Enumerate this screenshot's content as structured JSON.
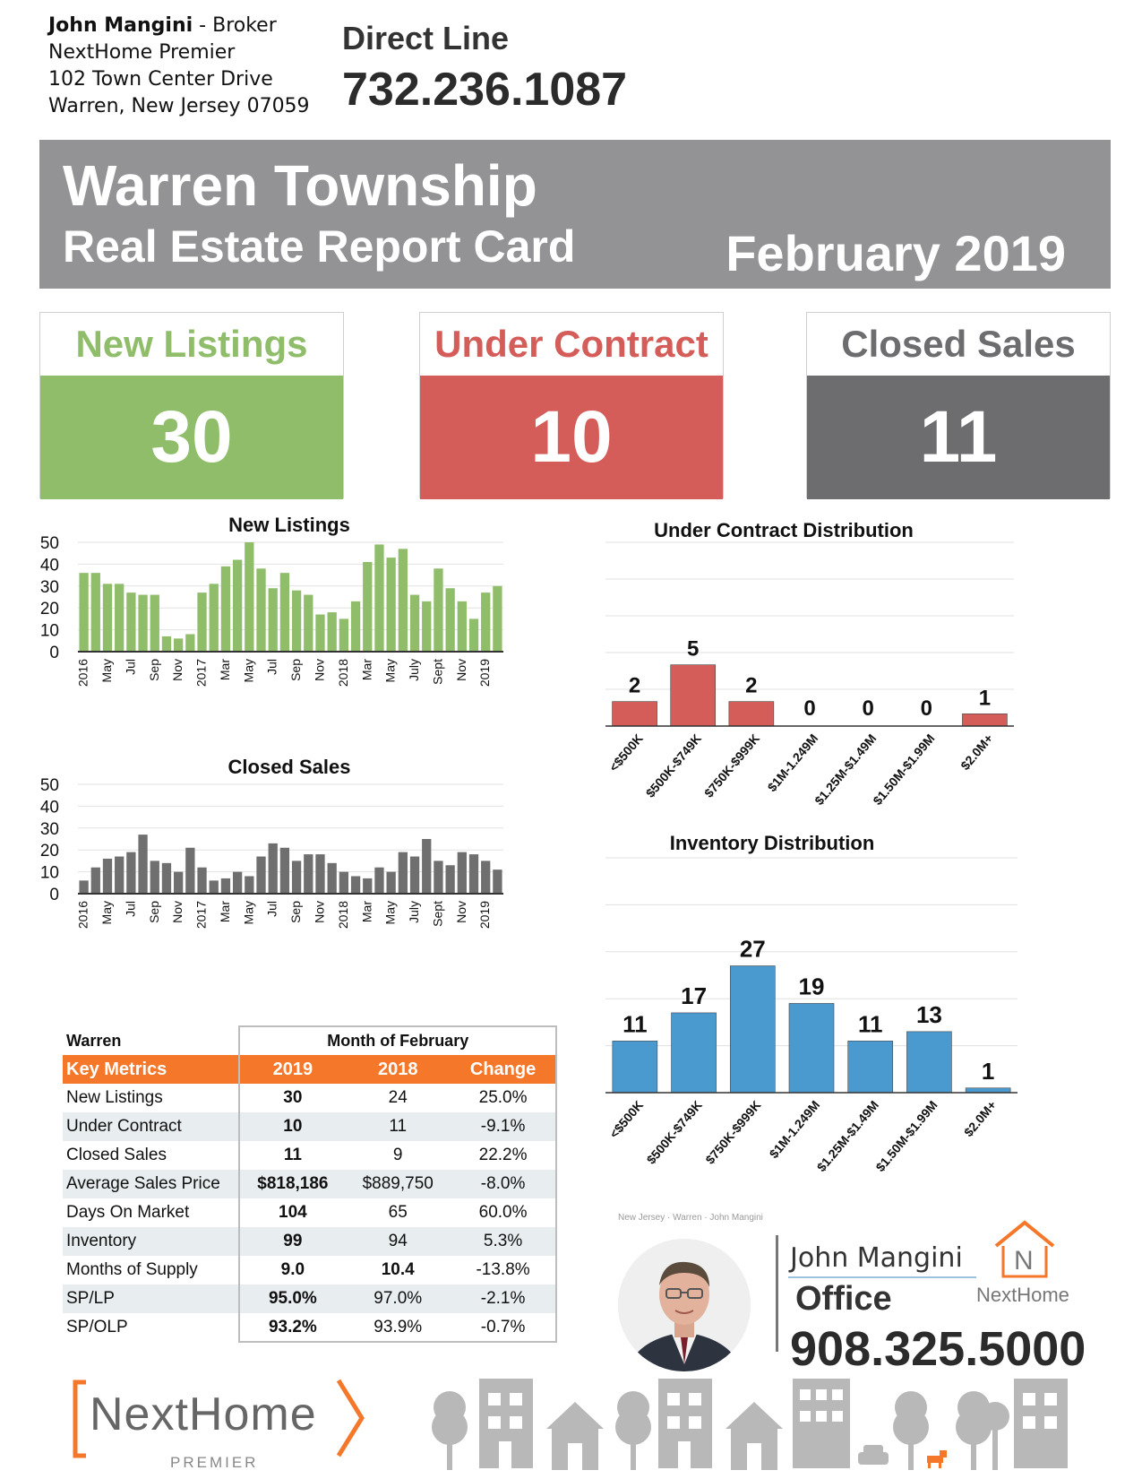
{
  "contact": {
    "name": "John Mangini",
    "role": " - Broker",
    "company": "NextHome Premier",
    "street": "102 Town Center Drive",
    "city": "Warren, New Jersey 07059"
  },
  "direct_line": {
    "label": "Direct Line",
    "phone": "732.236.1087"
  },
  "banner": {
    "title": "Warren Township",
    "subtitle": "Real Estate Report Card",
    "date": "February 2019"
  },
  "stats": {
    "new_listings": {
      "label": "New Listings",
      "value": "30"
    },
    "under_contract": {
      "label": "Under Contract",
      "value": "10"
    },
    "closed_sales": {
      "label": "Closed Sales",
      "value": "11"
    }
  },
  "colors": {
    "green": "#8fbd6a",
    "red": "#d45d5a",
    "gray_box": "#6d6d6f",
    "banner": "#939395",
    "blue": "#4a9ad0",
    "orange": "#f57729",
    "bar_gray": "#6f6f6f"
  },
  "chart_data": [
    {
      "id": "new_listings",
      "type": "bar",
      "title": "New Listings",
      "ylim": [
        0,
        50
      ],
      "yticks": [
        0,
        10,
        20,
        30,
        40,
        50
      ],
      "tick_labels": [
        "2016",
        "May",
        "Jul",
        "Sep",
        "Nov",
        "2017",
        "Mar",
        "May",
        "Jul",
        "Sep",
        "Nov",
        "2018",
        "Mar",
        "May",
        "July",
        "Sept",
        "Nov",
        "2019"
      ],
      "values": [
        36,
        36,
        31,
        31,
        27,
        26,
        26,
        7,
        6,
        8,
        27,
        31,
        39,
        42,
        50,
        38,
        29,
        36,
        28,
        26,
        17,
        18,
        15,
        23,
        41,
        49,
        43,
        47,
        26,
        23,
        38,
        29,
        23,
        15,
        27,
        30
      ],
      "color": "#8fbd6a"
    },
    {
      "id": "closed_sales",
      "type": "bar",
      "title": "Closed Sales",
      "ylim": [
        0,
        50
      ],
      "yticks": [
        0,
        10,
        20,
        30,
        40,
        50
      ],
      "tick_labels": [
        "2016",
        "May",
        "Jul",
        "Sep",
        "Nov",
        "2017",
        "Mar",
        "May",
        "Jul",
        "Sep",
        "Nov",
        "2018",
        "Mar",
        "May",
        "July",
        "Sept",
        "Nov",
        "2019"
      ],
      "values": [
        6,
        12,
        16,
        17,
        19,
        27,
        15,
        14,
        10,
        21,
        12,
        6,
        7,
        10,
        8,
        17,
        23,
        21,
        15,
        18,
        18,
        14,
        10,
        8,
        7,
        12,
        10,
        19,
        17,
        25,
        15,
        13,
        19,
        18,
        15,
        11
      ],
      "color": "#6f6f6f"
    },
    {
      "id": "under_contract_distribution",
      "type": "bar",
      "title": "Under Contract Distribution",
      "ylim": [
        0,
        15
      ],
      "yticks": [
        0,
        3,
        6,
        9,
        12,
        15
      ],
      "categories": [
        "<$500K",
        "$500K-$749K",
        "$750K-$999K",
        "$1M-1.249M",
        "$1.25M-$1.49M",
        "$1.50M-$1.99M",
        "$2.0M+"
      ],
      "values": [
        2,
        5,
        2,
        0,
        0,
        0,
        1
      ],
      "color": "#d45d5a"
    },
    {
      "id": "inventory_distribution",
      "type": "bar",
      "title": "Inventory Distribution",
      "ylim": [
        0,
        50
      ],
      "yticks": [
        0,
        10,
        20,
        30,
        40,
        50
      ],
      "categories": [
        "<$500K",
        "$500K-$749K",
        "$750K-$999K",
        "$1M-1.249M",
        "$1.25M-$1.49M",
        "$1.50M-$1.99M",
        "$2.0M+"
      ],
      "values": [
        11,
        17,
        27,
        19,
        11,
        13,
        1
      ],
      "color": "#4a9ad0"
    }
  ],
  "metrics": {
    "area": "Warren",
    "period": "Month of February",
    "key_label": "Key Metrics",
    "headers": [
      "2019",
      "2018",
      "Change"
    ],
    "rows": [
      {
        "name": "New Listings",
        "y2019": "30",
        "y2018": "24",
        "change": "25.0%"
      },
      {
        "name": "Under Contract",
        "y2019": "10",
        "y2018": "11",
        "change": "-9.1%"
      },
      {
        "name": "Closed Sales",
        "y2019": "11",
        "y2018": "9",
        "change": "22.2%"
      },
      {
        "name": "Average Sales Price",
        "y2019": "$818,186",
        "y2018": "$889,750",
        "change": "-8.0%"
      },
      {
        "name": "Days On Market",
        "y2019": "104",
        "y2018": "65",
        "change": "60.0%"
      },
      {
        "name": "Inventory",
        "y2019": "99",
        "y2018": "94",
        "change": "5.3%"
      },
      {
        "name": "Months of Supply",
        "y2019": "9.0",
        "y2018": "10.4",
        "change": "-13.8%"
      },
      {
        "name": "SP/LP",
        "y2019": "95.0%",
        "y2018": "97.0%",
        "change": "-2.1%"
      },
      {
        "name": "SP/OLP",
        "y2019": "93.2%",
        "y2018": "93.9%",
        "change": "-0.7%"
      }
    ]
  },
  "agent": {
    "breadcrumb": "New Jersey · Warren · John Mangini",
    "name": "John Mangini",
    "office_label": "Office",
    "office_phone": "908.325.5000",
    "brand": "NextHome"
  },
  "footer_logo": {
    "text": "NextHome",
    "sub": "PREMIER"
  },
  "icons": [
    "tree-icon",
    "building-icon",
    "house-icon",
    "car-icon",
    "dog-icon"
  ]
}
